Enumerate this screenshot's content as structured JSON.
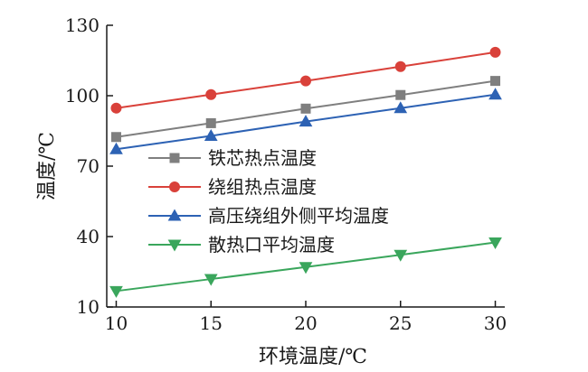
{
  "chart_data": {
    "type": "line",
    "title": "",
    "xlabel": "环境温度/℃",
    "ylabel": "温度/℃",
    "x": [
      10,
      15,
      20,
      25,
      30
    ],
    "xticks": [
      10,
      15,
      20,
      25,
      30
    ],
    "yticks": [
      10,
      40,
      70,
      100,
      130
    ],
    "xlim": [
      9.5,
      30.5
    ],
    "ylim": [
      10,
      130
    ],
    "grid": false,
    "legend_position": "top-right (inside plot)",
    "series": [
      {
        "name": "铁芯热点温度",
        "color": "#7f7f7f",
        "marker": "square",
        "values": [
          82.4,
          88.3,
          94.5,
          100.3,
          106.3
        ]
      },
      {
        "name": "绕组热点温度",
        "color": "#d9413a",
        "marker": "circle",
        "values": [
          94.7,
          100.5,
          106.3,
          112.4,
          118.5
        ]
      },
      {
        "name": "高压绕组外侧平均温度",
        "color": "#2d62b4",
        "marker": "triangle-up",
        "values": [
          77.2,
          82.9,
          89.0,
          94.7,
          100.5
        ]
      },
      {
        "name": "散热口平均温度",
        "color": "#3aa65c",
        "marker": "triangle-down",
        "values": [
          16.8,
          21.9,
          27.0,
          32.2,
          37.5
        ]
      }
    ]
  }
}
